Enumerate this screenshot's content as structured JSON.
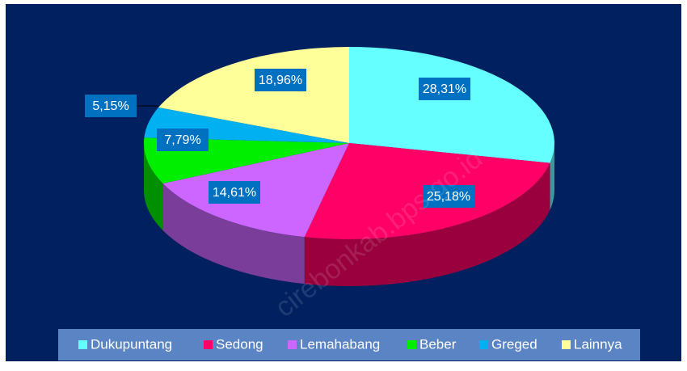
{
  "chart_data": {
    "type": "pie3d",
    "categories": [
      "Dukupuntang",
      "Sedong",
      "Lemahabang",
      "Beber",
      "Greged",
      "Lainnya"
    ],
    "values": [
      28.31,
      25.18,
      14.61,
      7.79,
      5.15,
      18.96
    ],
    "value_labels": [
      "28,31%",
      "25,18%",
      "14,61%",
      "7,79%",
      "5,15%",
      "18,96%"
    ],
    "colors": [
      "#66ffff",
      "#ff0066",
      "#cc66ff",
      "#00ee00",
      "#00b0f0",
      "#ffff99"
    ],
    "legend": "bottom",
    "watermark": "cirebonkab.bps.go.id"
  }
}
